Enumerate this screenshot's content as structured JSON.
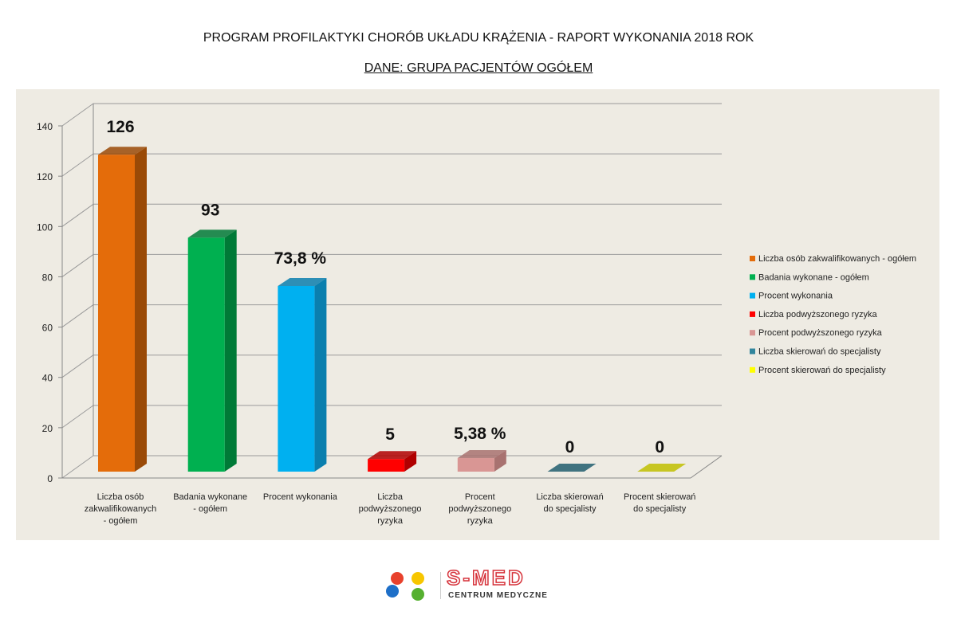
{
  "header": {
    "title": "PROGRAM PROFILAKTYKI CHORÓB UKŁADU KRĄŻENIA  - RAPORT WYKONANIA 2018 ROK",
    "subtitle": "DANE: GRUPA PACJENTÓW OGÓŁEM"
  },
  "logo": {
    "name": "S-MED",
    "tagline": "CENTRUM MEDYCZNE"
  },
  "chart_data": {
    "type": "bar",
    "title": "PROGRAM PROFILAKTYKI CHORÓB UKŁADU KRĄŻENIA - RAPORT WYKONANIA 2018 ROK",
    "categories": [
      [
        "Liczba osób",
        "zakwalifikowanych",
        "- ogółem"
      ],
      [
        "Badania wykonane",
        "- ogółem"
      ],
      [
        "Procent wykonania"
      ],
      [
        "Liczba",
        "podwyższonego",
        "ryzyka"
      ],
      [
        "Procent",
        "podwyższonego",
        "ryzyka"
      ],
      [
        "Liczba skierowań",
        "do specjalisty"
      ],
      [
        "Procent skierowań",
        "do specjalisty"
      ]
    ],
    "values": [
      126,
      93,
      73.8,
      5,
      5.38,
      0,
      0
    ],
    "data_labels": [
      "126",
      "93",
      "73,8 %",
      "5",
      "5,38 %",
      "0",
      "0"
    ],
    "colors": [
      "#E46C0A",
      "#00B050",
      "#00B0F0",
      "#FF0000",
      "#D99694",
      "#31859C",
      "#FFFF00"
    ],
    "side_colors": [
      "#9A4A07",
      "#007A37",
      "#0A7FAE",
      "#B00000",
      "#A87270",
      "#215E6E",
      "#C0C000"
    ],
    "legend": [
      "Liczba osób zakwalifikowanych - ogółem",
      "Badania wykonane - ogółem",
      "Procent wykonania",
      "Liczba podwyższonego ryzyka",
      "Procent podwyższonego ryzyka",
      "Liczba skierowań do specjalisty",
      "Procent skierowań do specjalisty"
    ],
    "legend_position": "right",
    "yticks": [
      0,
      20,
      40,
      60,
      80,
      100,
      120,
      140
    ],
    "ylim": [
      0,
      140
    ],
    "grid": true,
    "xlabel": "",
    "ylabel": ""
  }
}
